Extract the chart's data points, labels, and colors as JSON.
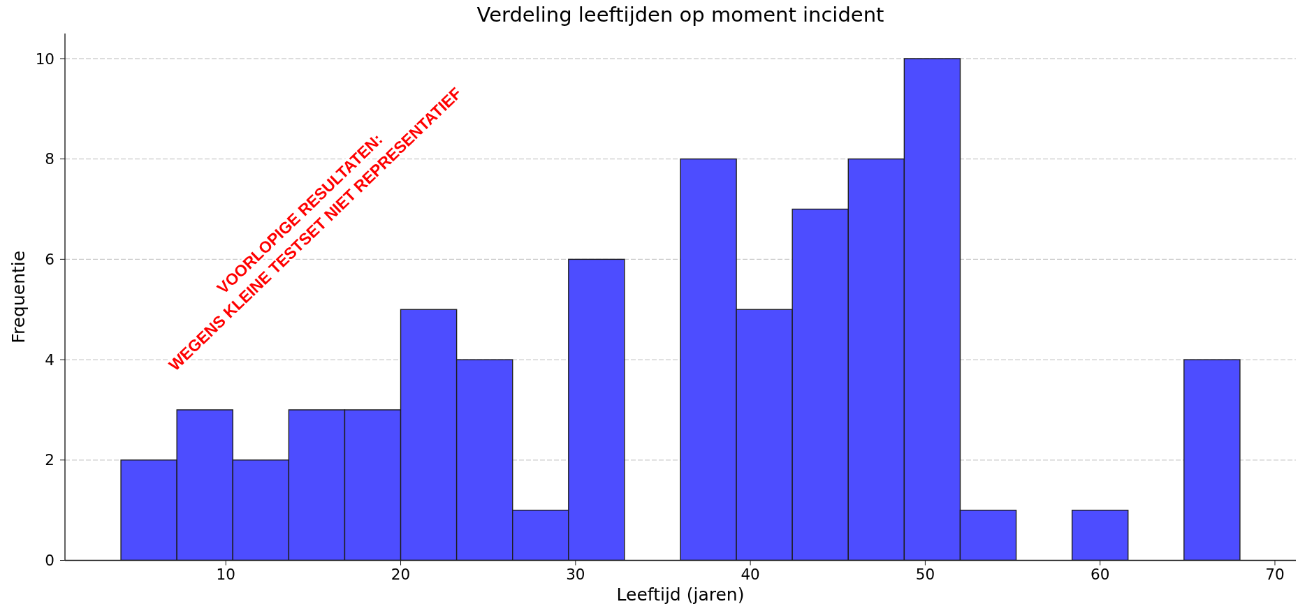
{
  "chart_data": {
    "type": "histogram",
    "title": "Verdeling leeftijden op moment incident",
    "xlabel": "Leeftijd (jaren)",
    "ylabel": "Frequentie",
    "bins": [
      4,
      7.2,
      10.4,
      13.6,
      16.8,
      20,
      23.2,
      26.4,
      29.6,
      32.8,
      36,
      39.2,
      42.4,
      45.6,
      48.8,
      52,
      55.2,
      58.4,
      61.6,
      64.8,
      68
    ],
    "values": [
      2,
      3,
      2,
      3,
      3,
      5,
      4,
      1,
      6,
      0,
      8,
      5,
      7,
      8,
      10,
      1,
      0,
      1,
      0,
      4
    ],
    "color": "#4d4dff",
    "xlim": [
      0.8,
      71.2
    ],
    "ylim": [
      0,
      10.5
    ],
    "xticks": [
      10,
      20,
      30,
      40,
      50,
      60,
      70
    ],
    "yticks": [
      0,
      2,
      4,
      6,
      8,
      10
    ],
    "grid": "y",
    "annotations": [
      "VOORLOPIGE RESULTATEN:",
      "WEGENS KLEINE TESTSET NIET REPRESENTATIEF"
    ]
  }
}
